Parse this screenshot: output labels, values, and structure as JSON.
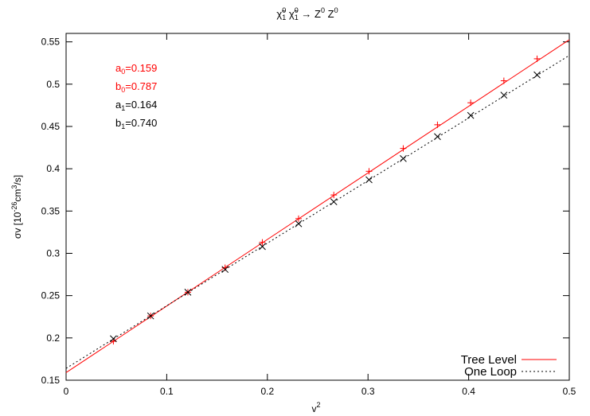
{
  "chart_data": {
    "type": "scatter",
    "title": "χ̃₁⁰ χ̃₁⁰ → Z⁰ Z⁰",
    "title_parts": {
      "particle": "χ̃",
      "sub": "1",
      "sup": "0",
      "arrow": "→",
      "product": "Z",
      "product_sup": "0"
    },
    "xlabel": "v²",
    "xlabel_parts": {
      "base": "v",
      "sup": "2"
    },
    "ylabel": "σv [10⁻²⁶cm³/s]",
    "ylabel_parts": {
      "a": "σv [10",
      "sup1": "-26",
      "b": "cm",
      "sup2": "3",
      "c": "/s]"
    },
    "xlim": [
      0,
      0.5
    ],
    "ylim": [
      0.15,
      0.56
    ],
    "x_ticks": [
      "0",
      "0.1",
      "0.2",
      "0.3",
      "0.4",
      "0.5"
    ],
    "x_tick_values": [
      0,
      0.1,
      0.2,
      0.3,
      0.4,
      0.5
    ],
    "y_ticks": [
      "0.15",
      "0.2",
      "0.25",
      "0.3",
      "0.35",
      "0.4",
      "0.45",
      "0.5",
      "0.55"
    ],
    "y_tick_values": [
      0.15,
      0.2,
      0.25,
      0.3,
      0.35,
      0.4,
      0.45,
      0.5,
      0.55
    ],
    "grid": false,
    "legend_position": "bottom-right",
    "annotations": [
      {
        "label": "a",
        "sub": "0",
        "value": "=0.159",
        "color": "#ff0000"
      },
      {
        "label": "b",
        "sub": "0",
        "value": "=0.787",
        "color": "#ff0000"
      },
      {
        "label": "a",
        "sub": "1",
        "value": "=0.164",
        "color": "#000000"
      },
      {
        "label": "b",
        "sub": "1",
        "value": "=0.740",
        "color": "#000000"
      }
    ],
    "series": [
      {
        "name": "Tree Level",
        "color": "#ff0000",
        "line_style": "solid",
        "marker": "plus",
        "fit": {
          "a": 0.159,
          "b": 0.787
        },
        "x": [
          0.047,
          0.084,
          0.121,
          0.158,
          0.195,
          0.231,
          0.266,
          0.301,
          0.335,
          0.369,
          0.402,
          0.435,
          0.468
        ],
        "y": [
          0.196,
          0.226,
          0.254,
          0.283,
          0.313,
          0.341,
          0.369,
          0.397,
          0.424,
          0.452,
          0.478,
          0.504,
          0.53
        ]
      },
      {
        "name": "One Loop",
        "color": "#000000",
        "line_style": "dotted",
        "marker": "cross",
        "fit": {
          "a": 0.164,
          "b": 0.74
        },
        "x": [
          0.047,
          0.084,
          0.121,
          0.158,
          0.195,
          0.231,
          0.266,
          0.301,
          0.335,
          0.369,
          0.402,
          0.435,
          0.468
        ],
        "y": [
          0.199,
          0.226,
          0.254,
          0.281,
          0.308,
          0.335,
          0.361,
          0.387,
          0.412,
          0.438,
          0.463,
          0.487,
          0.511
        ]
      }
    ]
  }
}
